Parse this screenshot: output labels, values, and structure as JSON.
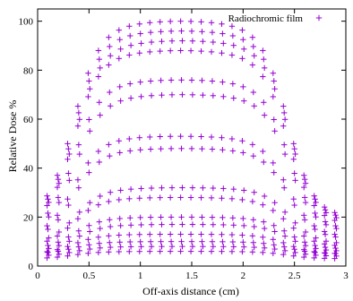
{
  "chart_data": {
    "type": "scatter",
    "title": "",
    "xlabel": "Off-axis distance (cm)",
    "ylabel": "Relative Dose %",
    "xlim": [
      0,
      3
    ],
    "ylim": [
      0,
      105
    ],
    "xticks": [
      0,
      0.5,
      1,
      1.5,
      2,
      2.5,
      3
    ],
    "xtick_labels": [
      "0",
      "0.5",
      "1",
      "1.5",
      "2",
      "2.5",
      "3"
    ],
    "yticks": [
      0,
      20,
      40,
      60,
      80,
      100
    ],
    "ytick_labels": [
      "0",
      "20",
      "40",
      "60",
      "80",
      "100"
    ],
    "grid": false,
    "legend_position": "top-right",
    "marker": "plus",
    "color": "#9400d3",
    "series": [
      {
        "name": "Radiochromic film",
        "x": [
          0.1,
          0.2,
          0.3,
          0.4,
          0.5,
          0.6,
          0.7,
          0.8,
          0.9,
          1.0,
          1.1,
          1.2,
          1.3,
          1.4,
          1.5,
          1.6,
          1.7,
          1.8,
          1.9,
          2.0,
          2.1,
          2.2,
          2.3,
          2.4,
          2.5,
          2.6,
          2.7,
          2.8,
          2.9
        ],
        "levels": [
          {
            "peak": 100,
            "edge": 20
          },
          {
            "peak": 96,
            "edge": 19
          },
          {
            "peak": 92,
            "edge": 18
          },
          {
            "peak": 88,
            "edge": 17
          },
          {
            "peak": 76,
            "edge": 15
          },
          {
            "peak": 70,
            "edge": 14
          },
          {
            "peak": 53,
            "edge": 12
          },
          {
            "peak": 48,
            "edge": 11
          },
          {
            "peak": 32,
            "edge": 9
          },
          {
            "peak": 28,
            "edge": 8
          },
          {
            "peak": 20,
            "edge": 7
          },
          {
            "peak": 17,
            "edge": 6
          },
          {
            "peak": 13,
            "edge": 5
          },
          {
            "peak": 10,
            "edge": 5
          },
          {
            "peak": 8,
            "edge": 4
          },
          {
            "peak": 6,
            "edge": 3
          }
        ]
      }
    ]
  }
}
